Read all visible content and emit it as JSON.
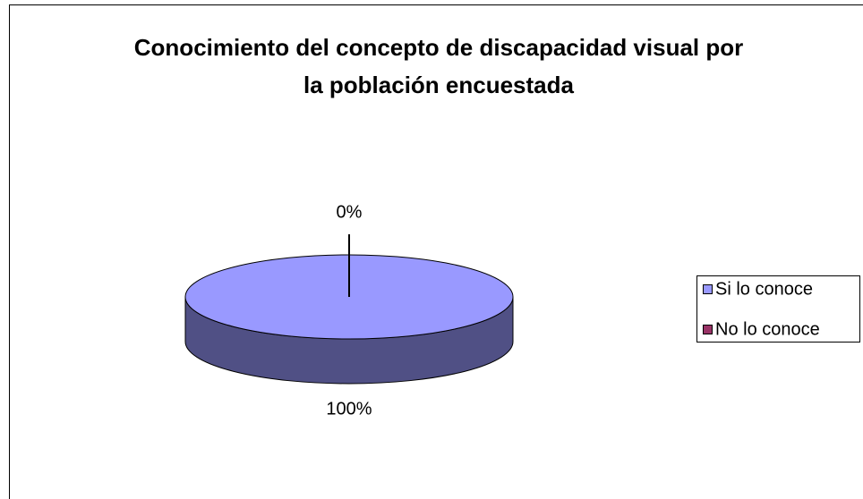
{
  "chart_data": {
    "type": "pie",
    "title": "Conocimiento del concepto de discapacidad visual por la población encuestada",
    "categories": [
      "Si lo conoce",
      "No lo conoce"
    ],
    "values": [
      100,
      0
    ],
    "value_labels": [
      "100%",
      "0%"
    ],
    "colors": [
      "#9999ff",
      "#993366"
    ],
    "legend": "right"
  }
}
